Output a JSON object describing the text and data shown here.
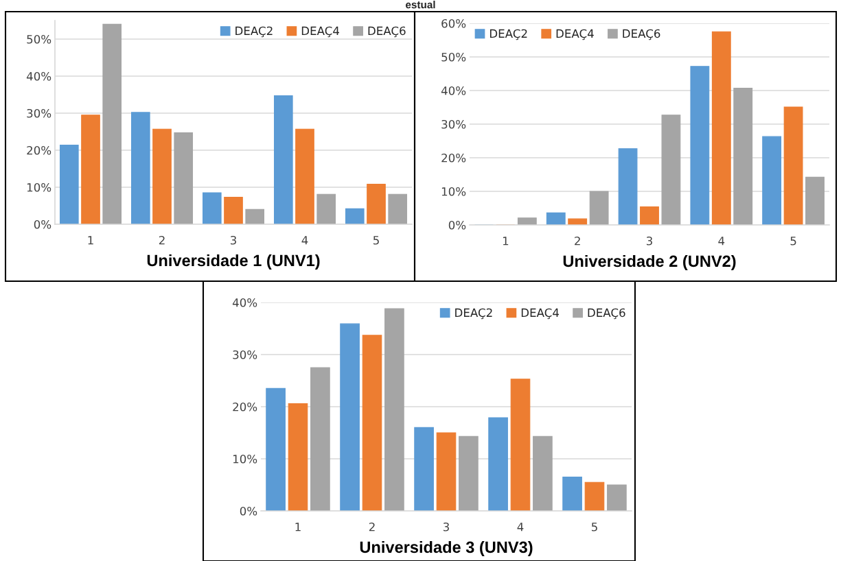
{
  "chart_data": [
    {
      "type": "bar",
      "xlabel": "Universidade 1 (UNV1)",
      "annotations": [
        "estual"
      ],
      "categories": [
        "1",
        "2",
        "3",
        "4",
        "5"
      ],
      "series": [
        {
          "name": "DEAÇ2",
          "color": "#5b9bd5",
          "values": [
            21.4,
            30.2,
            8.5,
            34.7,
            4.2
          ]
        },
        {
          "name": "DEAÇ4",
          "color": "#ed7d31",
          "values": [
            29.5,
            25.7,
            7.3,
            25.7,
            10.8
          ]
        },
        {
          "name": "DEAÇ6",
          "color": "#a5a5a5",
          "values": [
            54.0,
            24.7,
            4.0,
            8.1,
            8.1
          ]
        }
      ],
      "ylim": [
        0,
        55
      ],
      "yticks": [
        {
          "value": 0,
          "label": "0%"
        },
        {
          "value": 10,
          "label": "10%"
        },
        {
          "value": 20,
          "label": "20%"
        },
        {
          "value": 30,
          "label": "30%"
        },
        {
          "value": 40,
          "label": "40%"
        },
        {
          "value": 50,
          "label": "50%"
        }
      ],
      "grid": "y",
      "legend": "top right"
    },
    {
      "type": "bar",
      "xlabel": "Universidade 2 (UNV2)",
      "categories": [
        "1",
        "2",
        "3",
        "4",
        "5"
      ],
      "series": [
        {
          "name": "DEAÇ2",
          "color": "#5b9bd5",
          "values": [
            0,
            3.6,
            22.7,
            47.2,
            26.3
          ]
        },
        {
          "name": "DEAÇ4",
          "color": "#ed7d31",
          "values": [
            0,
            1.8,
            5.4,
            57.5,
            35.1
          ]
        },
        {
          "name": "DEAÇ6",
          "color": "#a5a5a5",
          "values": [
            2.1,
            10.0,
            32.7,
            40.7,
            14.2
          ]
        }
      ],
      "ylim": [
        0,
        60
      ],
      "yticks": [
        {
          "value": 0,
          "label": "0%"
        },
        {
          "value": 10,
          "label": "10%"
        },
        {
          "value": 20,
          "label": "20%"
        },
        {
          "value": 30,
          "label": "30%"
        },
        {
          "value": 40,
          "label": "40%"
        },
        {
          "value": 50,
          "label": "50%"
        },
        {
          "value": 60,
          "label": "60%"
        }
      ],
      "grid": "y",
      "legend": "top left"
    },
    {
      "type": "bar",
      "xlabel": "Universidade 3 (UNV3)",
      "categories": [
        "1",
        "2",
        "3",
        "4",
        "5"
      ],
      "series": [
        {
          "name": "DEAÇ2",
          "color": "#5b9bd5",
          "values": [
            23.5,
            35.9,
            16.0,
            17.9,
            6.5
          ]
        },
        {
          "name": "DEAÇ4",
          "color": "#ed7d31",
          "values": [
            20.6,
            33.7,
            15.0,
            25.3,
            5.5
          ]
        },
        {
          "name": "DEAÇ6",
          "color": "#a5a5a5",
          "values": [
            27.5,
            38.8,
            14.3,
            14.3,
            5.0
          ]
        }
      ],
      "ylim": [
        0,
        40
      ],
      "yticks": [
        {
          "value": 0,
          "label": "0%"
        },
        {
          "value": 10,
          "label": "10%"
        },
        {
          "value": 20,
          "label": "20%"
        },
        {
          "value": 30,
          "label": "30%"
        },
        {
          "value": 40,
          "label": "40%"
        }
      ],
      "grid": "y",
      "legend": "top right"
    }
  ]
}
